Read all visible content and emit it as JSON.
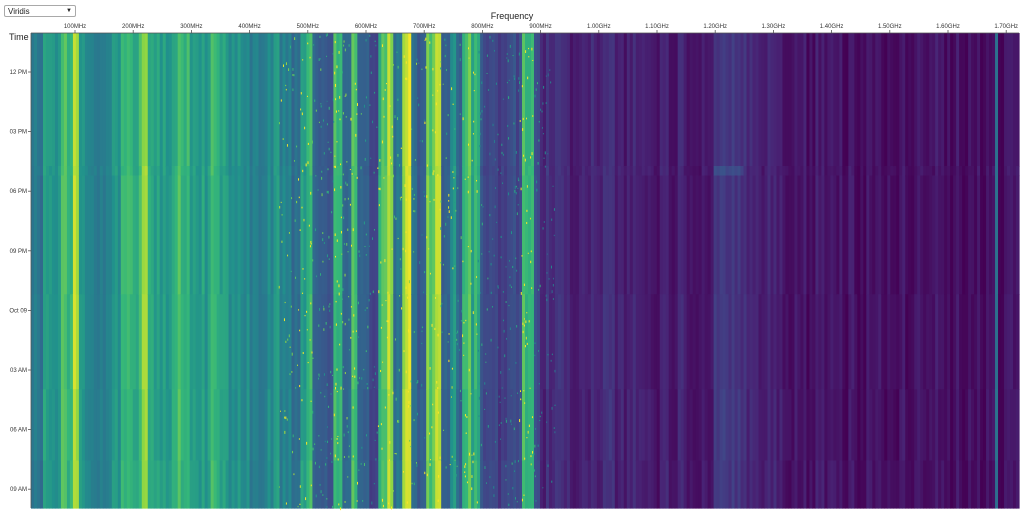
{
  "colormap_select": {
    "value": "Viridis",
    "arrow": "▼"
  },
  "chart_data": {
    "type": "heatmap",
    "title": "",
    "xlabel": "Frequency",
    "ylabel": "Time",
    "x_ticks": [
      "100MHz",
      "200MHz",
      "300MHz",
      "400MHz",
      "500MHz",
      "600MHz",
      "700MHz",
      "800MHz",
      "900MHz",
      "1.00GHz",
      "1.10GHz",
      "1.20GHz",
      "1.30GHz",
      "1.40GHz",
      "1.50GHz",
      "1.60GHz",
      "1.70GHz"
    ],
    "y_ticks": [
      "12 PM",
      "03 PM",
      "06 PM",
      "09 PM",
      "Oct 09",
      "03 AM",
      "06 AM",
      "09 AM"
    ],
    "colorscale": "Viridis",
    "colors": {
      "low": "#440154",
      "mid": "#21918c",
      "high": "#fde725"
    }
  }
}
